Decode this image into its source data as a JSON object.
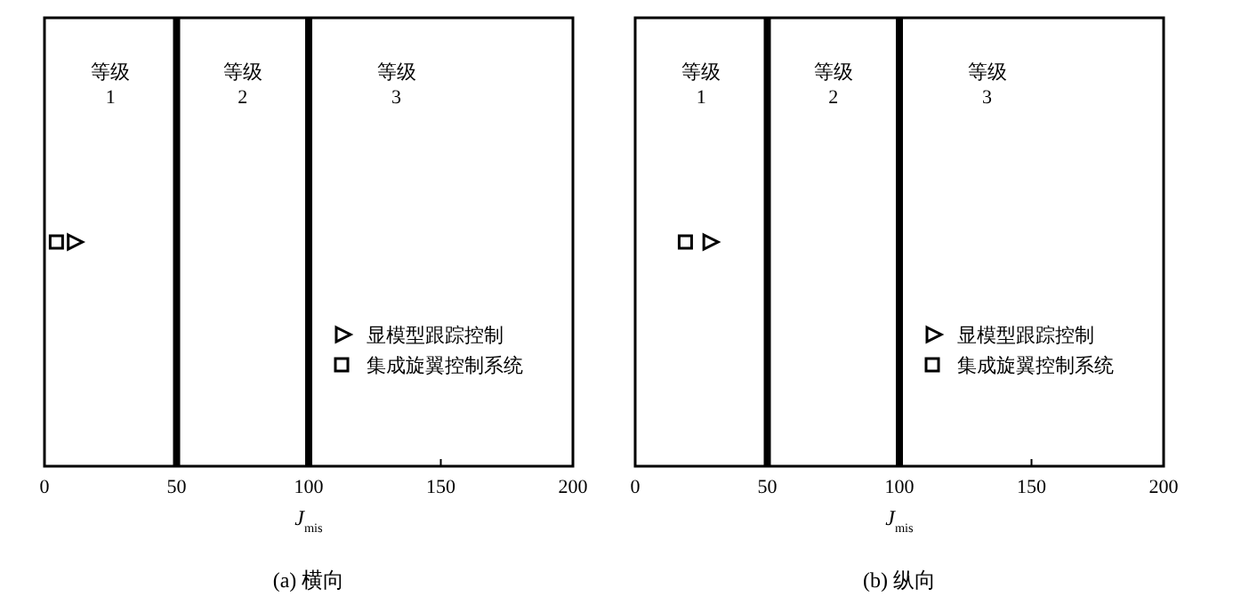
{
  "chart_data": [
    {
      "type": "scatter",
      "orientation": "horizontal",
      "title": "(a) 横向",
      "xlabel": "J$_{mis}$",
      "xlim": [
        0,
        200
      ],
      "xticks": [
        0,
        50,
        100,
        150,
        200
      ],
      "categories": [
        null
      ],
      "legend": "right",
      "series": [
        {
          "name": "显模型跟踪控制",
          "color": "#000000",
          "marker": "triangle",
          "values": [
            11
          ]
        },
        {
          "name": "集成旋翼控制系统",
          "color": "#000000",
          "marker": "square",
          "values": [
            4.5
          ]
        }
      ],
      "ref_lines": [
        {
          "axis": "x",
          "value": 50,
          "color": "#000000"
        },
        {
          "axis": "x",
          "value": 100,
          "color": "#000000"
        }
      ],
      "annotations": [
        "等级\n1",
        "等级\n2",
        "等级\n3"
      ]
    },
    {
      "type": "scatter",
      "orientation": "horizontal",
      "title": "(b) 纵向",
      "xlabel": "J$_{mis}$",
      "xlim": [
        0,
        200
      ],
      "xticks": [
        0,
        50,
        100,
        150,
        200
      ],
      "categories": [
        null
      ],
      "legend": "right",
      "series": [
        {
          "name": "显模型跟踪控制",
          "color": "#000000",
          "marker": "triangle",
          "values": [
            28
          ]
        },
        {
          "name": "集成旋翼控制系统",
          "color": "#000000",
          "marker": "square",
          "values": [
            19
          ]
        }
      ],
      "ref_lines": [
        {
          "axis": "x",
          "value": 50,
          "color": "#000000"
        },
        {
          "axis": "x",
          "value": 100,
          "color": "#000000"
        }
      ],
      "annotations": [
        "等级\n1",
        "等级\n2",
        "等级\n3"
      ]
    }
  ]
}
